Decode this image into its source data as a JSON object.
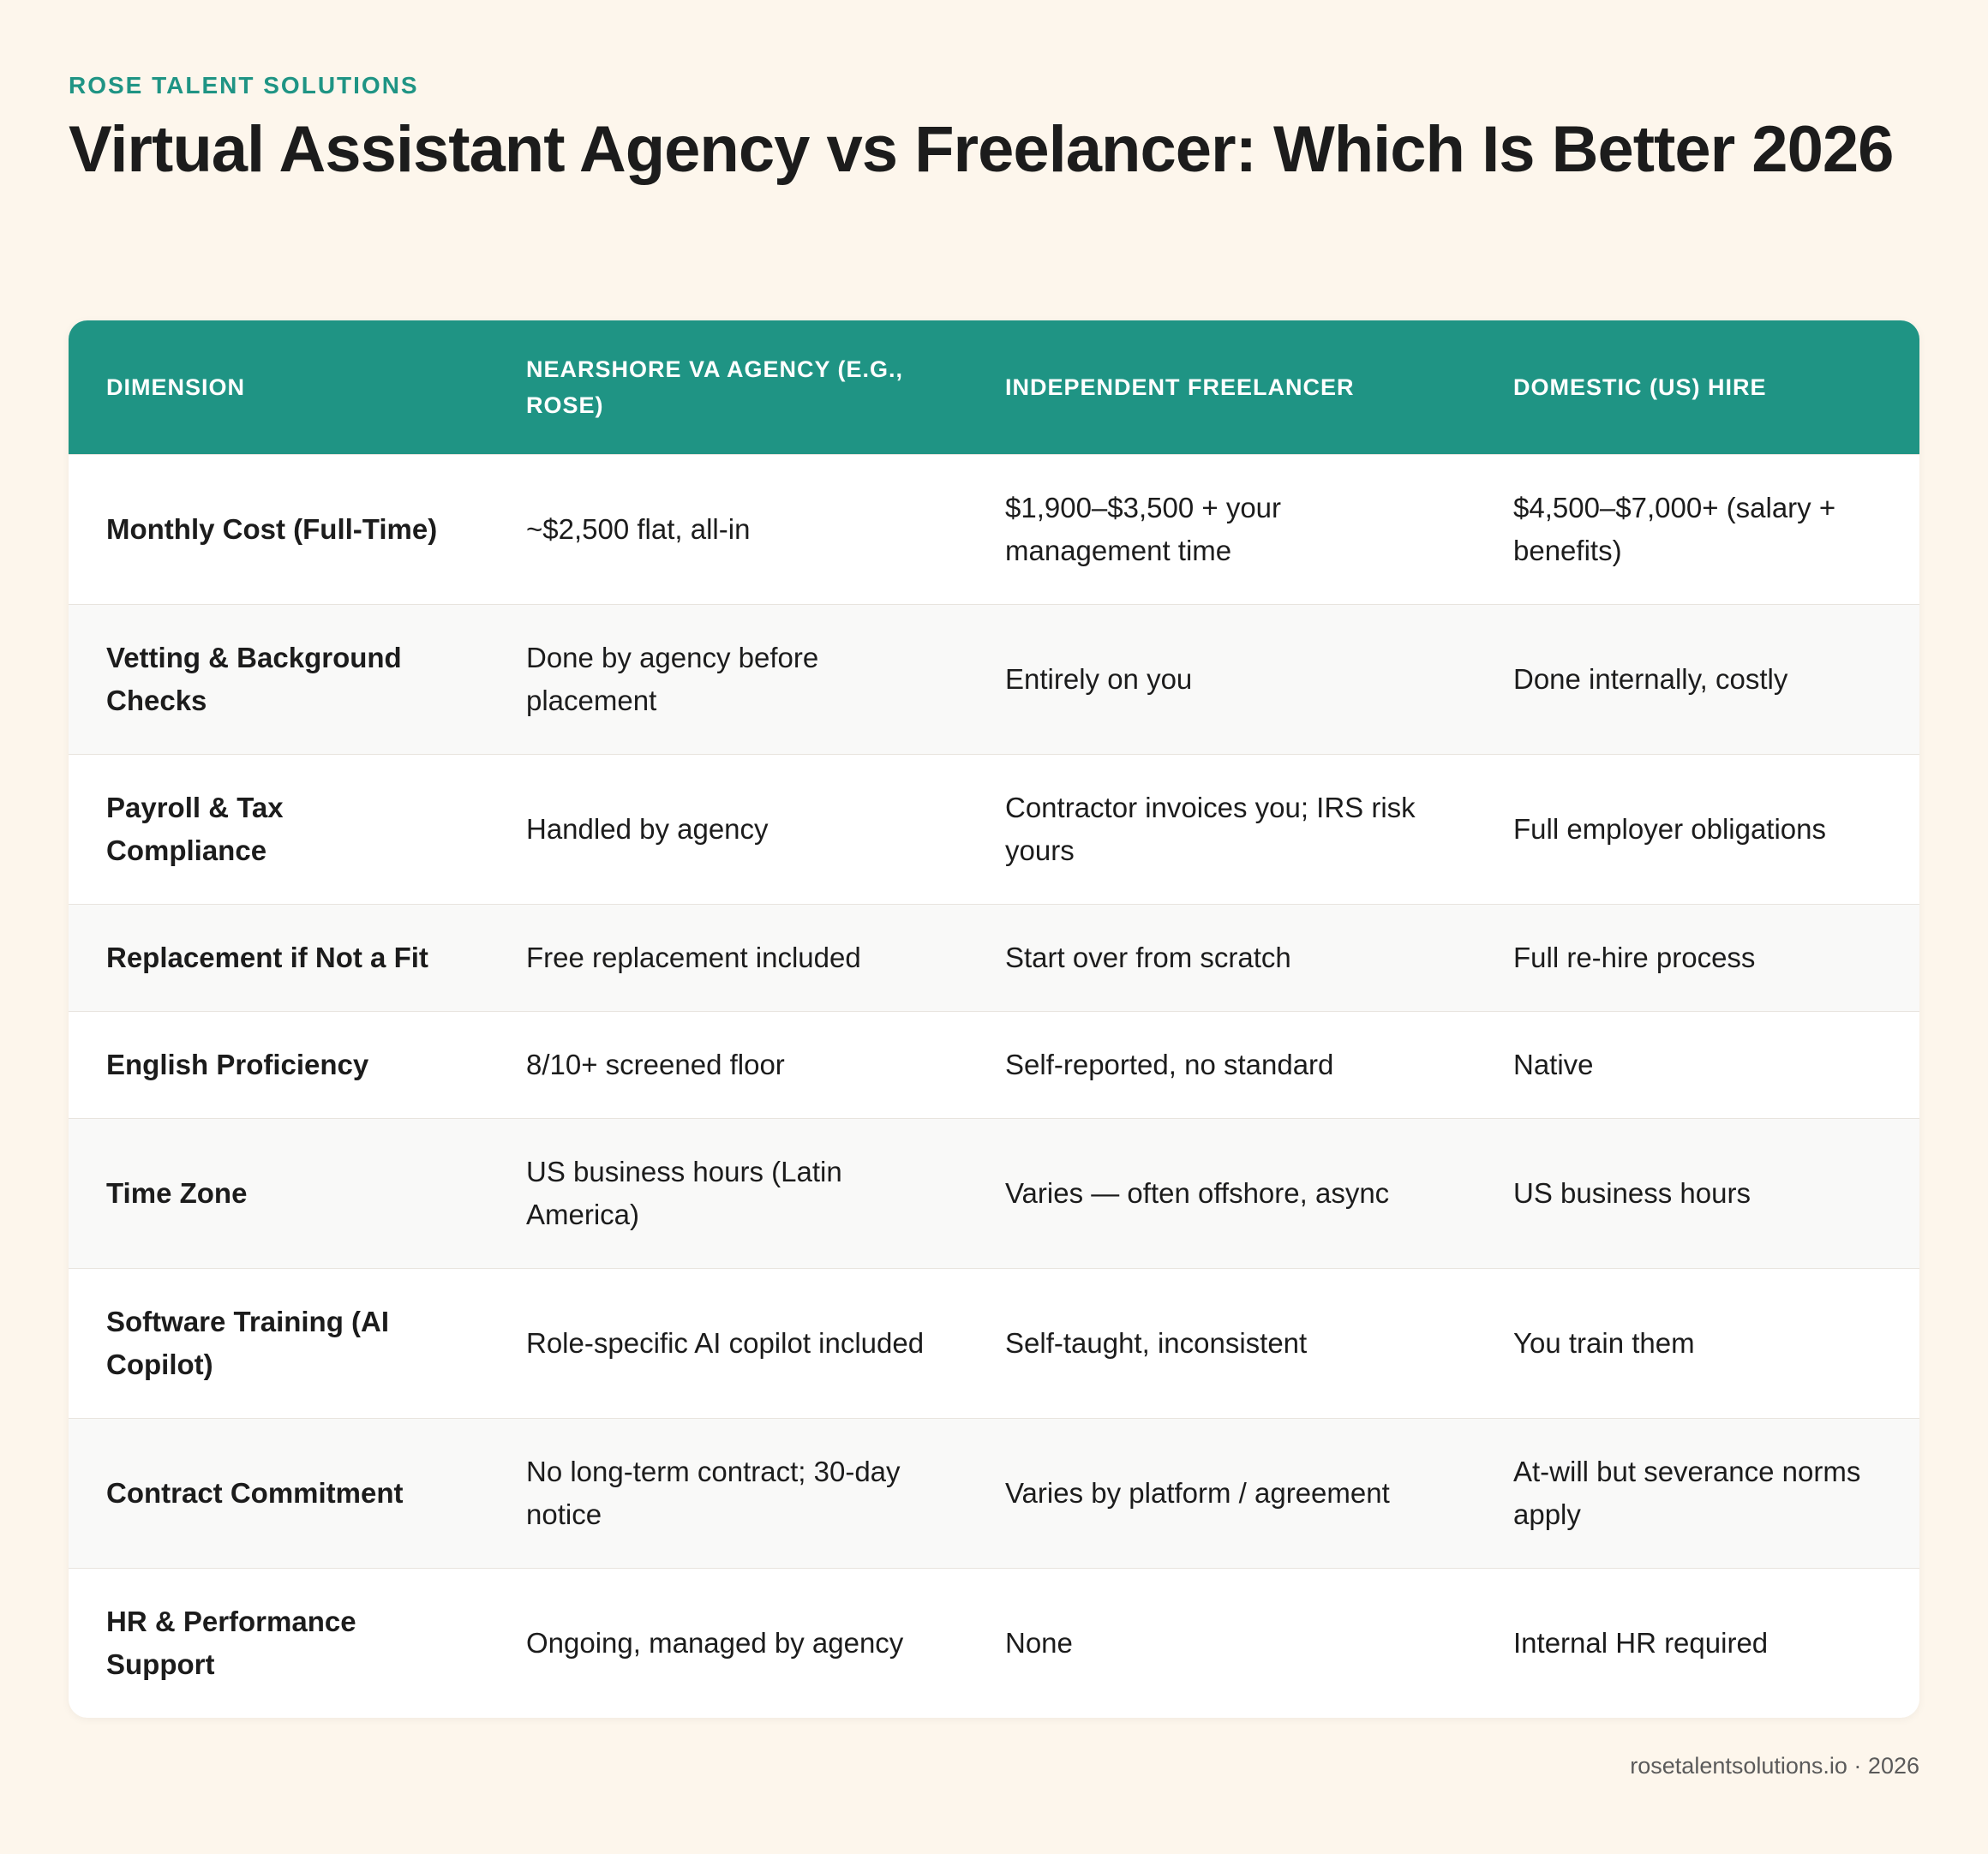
{
  "header": {
    "brand": "ROSE TALENT SOLUTIONS",
    "title": "Virtual Assistant Agency vs Freelancer: Which Is Better 2026"
  },
  "table": {
    "columns": [
      "DIMENSION",
      "NEARSHORE VA AGENCY (E.G., ROSE)",
      "INDEPENDENT FREELANCER",
      "DOMESTIC (US) HIRE"
    ],
    "rows": [
      [
        "Monthly Cost (Full-Time)",
        "~$2,500 flat, all-in",
        "$1,900–$3,500 + your management time",
        "$4,500–$7,000+ (salary + benefits)"
      ],
      [
        "Vetting & Background Checks",
        "Done by agency before placement",
        "Entirely on you",
        "Done internally, costly"
      ],
      [
        "Payroll & Tax Compliance",
        "Handled by agency",
        "Contractor invoices you; IRS risk yours",
        "Full employer obligations"
      ],
      [
        "Replacement if Not a Fit",
        "Free replacement included",
        "Start over from scratch",
        "Full re-hire process"
      ],
      [
        "English Proficiency",
        "8/10+ screened floor",
        "Self-reported, no standard",
        "Native"
      ],
      [
        "Time Zone",
        "US business hours (Latin America)",
        "Varies — often offshore, async",
        "US business hours"
      ],
      [
        "Software Training (AI Copilot)",
        "Role-specific AI copilot included",
        "Self-taught, inconsistent",
        "You train them"
      ],
      [
        "Contract Commitment",
        "No long-term contract; 30-day notice",
        "Varies by platform / agreement",
        "At-will but severance norms apply"
      ],
      [
        "HR & Performance Support",
        "Ongoing, managed by agency",
        "None",
        "Internal HR required"
      ]
    ]
  },
  "footer": "rosetalentsolutions.io · 2026"
}
